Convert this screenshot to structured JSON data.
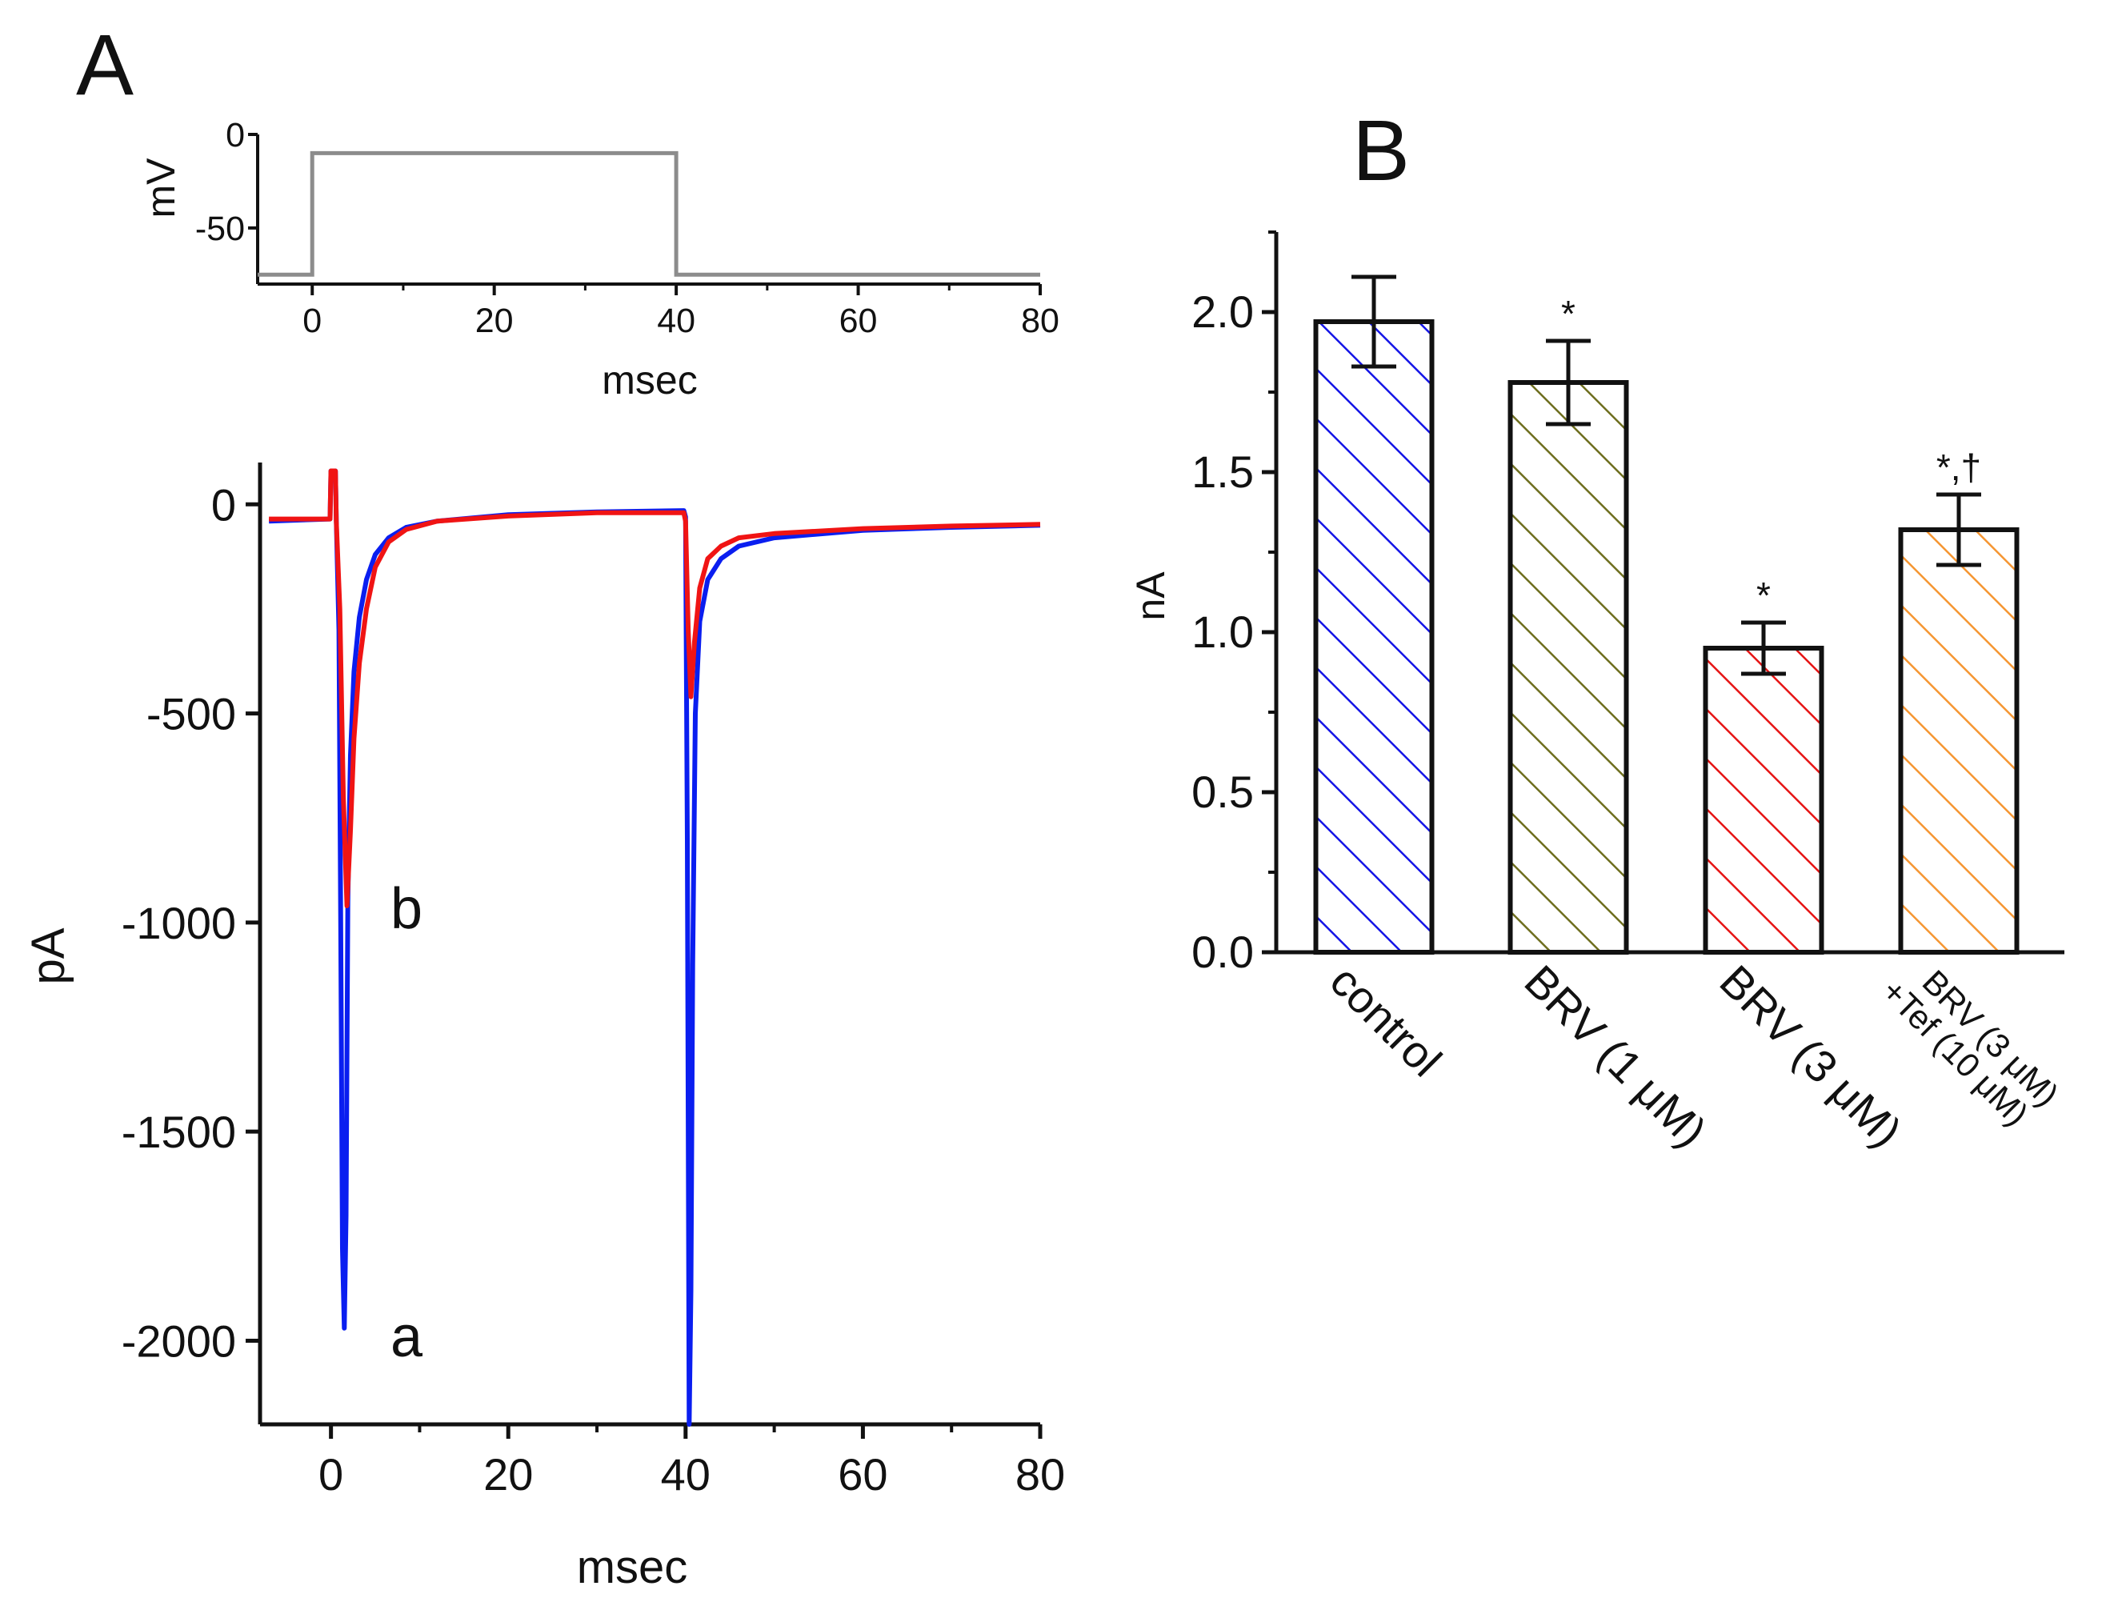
{
  "chart_data": [
    {
      "id": "A-protocol",
      "panel_label": "A",
      "type": "line",
      "xlabel": "msec",
      "ylabel": "mV",
      "xlim": [
        -6,
        80
      ],
      "ylim": [
        -80,
        0
      ],
      "xticks": [
        0,
        20,
        40,
        60,
        80
      ],
      "yticks": [
        0,
        -50
      ],
      "series": [
        {
          "name": "voltage step",
          "color": "#8c8c8c",
          "points": [
            [
              -6,
              -75
            ],
            [
              0,
              -75
            ],
            [
              0,
              -10
            ],
            [
              40,
              -10
            ],
            [
              40,
              -75
            ],
            [
              80,
              -75
            ]
          ]
        }
      ]
    },
    {
      "id": "A-current",
      "type": "line",
      "xlabel": "msec",
      "ylabel": "pA",
      "xlim": [
        -8,
        80
      ],
      "ylim": [
        -2200,
        100
      ],
      "xticks": [
        0,
        20,
        40,
        60,
        80
      ],
      "yticks": [
        0,
        -500,
        -1000,
        -1500,
        -2000
      ],
      "series": [
        {
          "name": "a",
          "label": "a",
          "color": "#0a1ef0",
          "points": [
            [
              -7,
              -40
            ],
            [
              -0.1,
              -35
            ],
            [
              0,
              80
            ],
            [
              0.5,
              80
            ],
            [
              0.6,
              -40
            ],
            [
              0.9,
              -300
            ],
            [
              1.1,
              -1000
            ],
            [
              1.3,
              -1780
            ],
            [
              1.5,
              -1970
            ],
            [
              1.7,
              -1700
            ],
            [
              1.9,
              -950
            ],
            [
              2.2,
              -600
            ],
            [
              2.6,
              -400
            ],
            [
              3.2,
              -270
            ],
            [
              4.0,
              -180
            ],
            [
              5.0,
              -120
            ],
            [
              6.5,
              -80
            ],
            [
              8.5,
              -55
            ],
            [
              12,
              -40
            ],
            [
              20,
              -25
            ],
            [
              30,
              -18
            ],
            [
              39.8,
              -15
            ],
            [
              40.0,
              -30
            ],
            [
              40.2,
              -800
            ],
            [
              40.4,
              -2200
            ],
            [
              40.6,
              -1880
            ],
            [
              40.8,
              -1100
            ],
            [
              41.1,
              -500
            ],
            [
              41.6,
              -280
            ],
            [
              42.5,
              -180
            ],
            [
              44,
              -130
            ],
            [
              46,
              -100
            ],
            [
              50,
              -80
            ],
            [
              60,
              -62
            ],
            [
              70,
              -55
            ],
            [
              80,
              -50
            ]
          ]
        },
        {
          "name": "b",
          "label": "b",
          "color": "#f01414",
          "points": [
            [
              -7,
              -35
            ],
            [
              -0.1,
              -35
            ],
            [
              0,
              80
            ],
            [
              0.5,
              80
            ],
            [
              0.6,
              -40
            ],
            [
              1.0,
              -250
            ],
            [
              1.4,
              -700
            ],
            [
              1.8,
              -960
            ],
            [
              2.2,
              -780
            ],
            [
              2.6,
              -560
            ],
            [
              3.2,
              -380
            ],
            [
              4.0,
              -250
            ],
            [
              5.0,
              -150
            ],
            [
              6.5,
              -90
            ],
            [
              8.5,
              -60
            ],
            [
              12,
              -40
            ],
            [
              20,
              -28
            ],
            [
              30,
              -20
            ],
            [
              39.8,
              -20
            ],
            [
              40.0,
              -40
            ],
            [
              40.3,
              -300
            ],
            [
              40.6,
              -460
            ],
            [
              41.0,
              -330
            ],
            [
              41.6,
              -200
            ],
            [
              42.5,
              -130
            ],
            [
              44,
              -100
            ],
            [
              46,
              -80
            ],
            [
              50,
              -70
            ],
            [
              60,
              -58
            ],
            [
              70,
              -52
            ],
            [
              80,
              -48
            ]
          ]
        }
      ]
    },
    {
      "id": "B",
      "panel_label": "B",
      "type": "bar",
      "ylabel": "nA",
      "ylim": [
        0,
        2.25
      ],
      "yticks": [
        0.0,
        0.5,
        1.0,
        1.5,
        2.0
      ],
      "tick_labels": [
        "0.0",
        "0.5",
        "1.0",
        "1.5",
        "2.0"
      ],
      "categories": [
        "control",
        "BRV (1 μM)",
        "BRV (3 μM)",
        [
          "BRV (3 μM)",
          "+Tef (10 μM)"
        ]
      ],
      "values": [
        1.97,
        1.78,
        0.95,
        1.32
      ],
      "errors": [
        0.14,
        0.13,
        0.08,
        0.11
      ],
      "significance": [
        "",
        "*",
        "*",
        "*,†"
      ],
      "colors": [
        "#1414e6",
        "#6e6e1e",
        "#e61414",
        "#f59632"
      ]
    }
  ]
}
